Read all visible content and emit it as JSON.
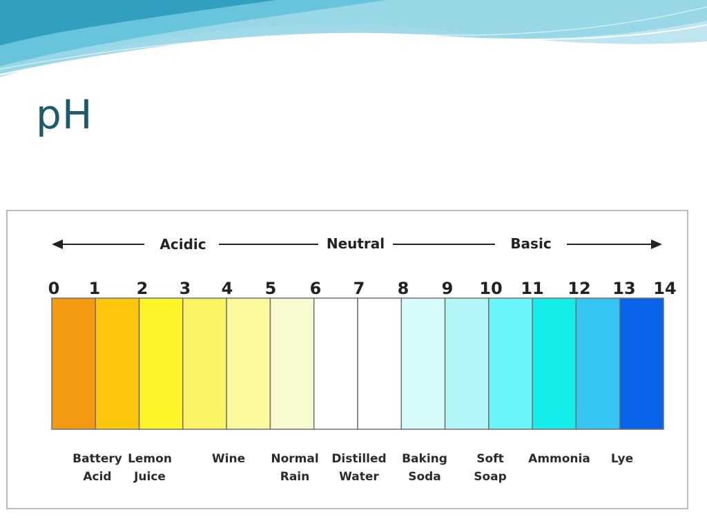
{
  "slide": {
    "title": "pH"
  },
  "scale": {
    "regions": {
      "acidic": "Acidic",
      "neutral": "Neutral",
      "basic": "Basic"
    },
    "numbers": [
      "0",
      "1",
      "2",
      "3",
      "4",
      "5",
      "6",
      "7",
      "8",
      "9",
      "10",
      "11",
      "12",
      "13",
      "14"
    ],
    "colors": [
      "#f39a12",
      "#fbc60c",
      "#fdf529",
      "#fbf566",
      "#fbfa9c",
      "#fafad0",
      "#ffffff",
      "#ffffff",
      "#d6fbfb",
      "#b2f6f8",
      "#69f5f9",
      "#14eeea",
      "#35c5f3",
      "#0a64ea"
    ],
    "substances": [
      {
        "lines": [
          "Battery",
          "Acid"
        ]
      },
      {
        "lines": [
          "Lemon",
          "Juice"
        ]
      },
      {
        "lines": [
          "Wine"
        ]
      },
      {
        "lines": [
          "Normal",
          "Rain"
        ]
      },
      {
        "lines": [
          "Distilled",
          "Water"
        ]
      },
      {
        "lines": [
          "Baking",
          "Soda"
        ]
      },
      {
        "lines": [
          "Soft",
          "Soap"
        ]
      },
      {
        "lines": [
          "Ammonia"
        ]
      },
      {
        "lines": [
          "Lye"
        ]
      }
    ]
  },
  "theme": {
    "wave_light": "#bfe6ef",
    "wave_mid": "#67c4db",
    "wave_dark": "#2a9bbd",
    "title_color": "#1d5a70"
  }
}
